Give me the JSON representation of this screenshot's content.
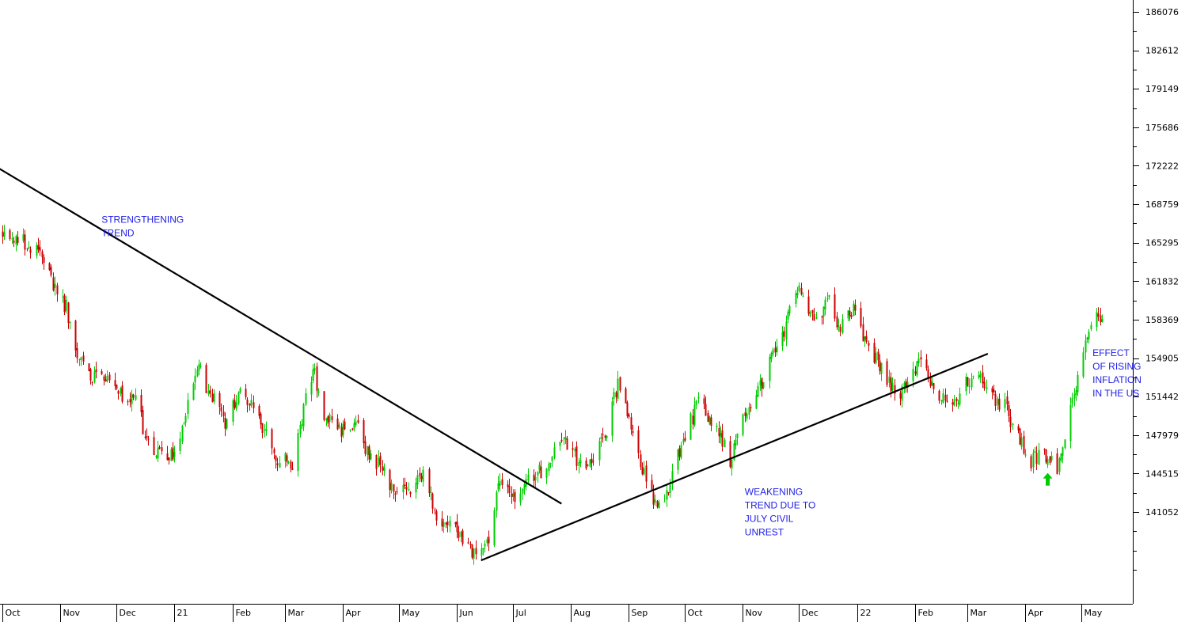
{
  "chart_data": {
    "type": "candlestick",
    "title": "",
    "xlabel": "",
    "ylabel": "",
    "y_axis_position": "right",
    "ylim": [
      136500,
      187300
    ],
    "grid": false,
    "y_ticks": [
      186076,
      182612,
      179149,
      175686,
      172222,
      168759,
      165295,
      161832,
      158369,
      154905,
      151442,
      147979,
      144515,
      141052
    ],
    "x_ticks": [
      {
        "label": "Oct",
        "date": "2020-10"
      },
      {
        "label": "Nov",
        "date": "2020-11"
      },
      {
        "label": "Dec",
        "date": "2020-12"
      },
      {
        "label": "21",
        "date": "2021-01"
      },
      {
        "label": "Feb",
        "date": "2021-02"
      },
      {
        "label": "Mar",
        "date": "2021-03"
      },
      {
        "label": "Apr",
        "date": "2021-04"
      },
      {
        "label": "May",
        "date": "2021-05"
      },
      {
        "label": "Jun",
        "date": "2021-06"
      },
      {
        "label": "Jul",
        "date": "2021-07"
      },
      {
        "label": "Aug",
        "date": "2021-08"
      },
      {
        "label": "Sep",
        "date": "2021-09"
      },
      {
        "label": "Oct",
        "date": "2021-10"
      },
      {
        "label": "Nov",
        "date": "2021-11"
      },
      {
        "label": "Dec",
        "date": "2021-12"
      },
      {
        "label": "22",
        "date": "2022-01"
      },
      {
        "label": "Feb",
        "date": "2022-02"
      },
      {
        "label": "Mar",
        "date": "2022-03"
      },
      {
        "label": "Apr",
        "date": "2022-04"
      },
      {
        "label": "May",
        "date": "2022-05"
      }
    ],
    "up_color": "#00cc00",
    "down_color": "#cc0000",
    "price_path": [
      [
        "2020-10-01",
        166200
      ],
      [
        "2020-10-10",
        165500
      ],
      [
        "2020-10-20",
        164800
      ],
      [
        "2020-10-28",
        161500
      ],
      [
        "2020-11-04",
        159500
      ],
      [
        "2020-11-09",
        155500
      ],
      [
        "2020-11-16",
        153300
      ],
      [
        "2020-11-25",
        152800
      ],
      [
        "2020-12-04",
        151400
      ],
      [
        "2020-12-11",
        151700
      ],
      [
        "2020-12-17",
        147200
      ],
      [
        "2020-12-23",
        146100
      ],
      [
        "2020-12-31",
        146000
      ],
      [
        "2021-01-08",
        150500
      ],
      [
        "2021-01-14",
        153800
      ],
      [
        "2021-01-21",
        151400
      ],
      [
        "2021-01-28",
        149200
      ],
      [
        "2021-02-04",
        151800
      ],
      [
        "2021-02-11",
        150900
      ],
      [
        "2021-02-18",
        148300
      ],
      [
        "2021-02-25",
        145200
      ],
      [
        "2021-03-01",
        146600
      ],
      [
        "2021-03-05",
        144800
      ],
      [
        "2021-03-11",
        150500
      ],
      [
        "2021-03-16",
        154100
      ],
      [
        "2021-03-22",
        149700
      ],
      [
        "2021-03-31",
        148300
      ],
      [
        "2021-04-08",
        149200
      ],
      [
        "2021-04-15",
        146000
      ],
      [
        "2021-04-22",
        145200
      ],
      [
        "2021-04-29",
        142700
      ],
      [
        "2021-05-06",
        143100
      ],
      [
        "2021-05-14",
        144600
      ],
      [
        "2021-05-21",
        140600
      ],
      [
        "2021-05-31",
        140000
      ],
      [
        "2021-06-07",
        137600
      ],
      [
        "2021-06-12",
        136800
      ],
      [
        "2021-06-18",
        138800
      ],
      [
        "2021-06-23",
        143500
      ],
      [
        "2021-06-30",
        142300
      ],
      [
        "2021-07-07",
        143600
      ],
      [
        "2021-07-14",
        144400
      ],
      [
        "2021-07-21",
        145700
      ],
      [
        "2021-07-29",
        147600
      ],
      [
        "2021-08-04",
        145700
      ],
      [
        "2021-08-10",
        144700
      ],
      [
        "2021-08-19",
        148000
      ],
      [
        "2021-08-26",
        152500
      ],
      [
        "2021-09-01",
        149900
      ],
      [
        "2021-09-06",
        145900
      ],
      [
        "2021-09-14",
        142300
      ],
      [
        "2021-09-20",
        141900
      ],
      [
        "2021-09-25",
        145400
      ],
      [
        "2021-10-01",
        147800
      ],
      [
        "2021-10-08",
        151100
      ],
      [
        "2021-10-15",
        149300
      ],
      [
        "2021-10-20",
        147800
      ],
      [
        "2021-10-25",
        145400
      ],
      [
        "2021-10-31",
        149700
      ],
      [
        "2021-11-05",
        150900
      ],
      [
        "2021-11-11",
        152700
      ],
      [
        "2021-11-17",
        155300
      ],
      [
        "2021-11-24",
        157800
      ],
      [
        "2021-11-30",
        161300
      ],
      [
        "2021-12-06",
        158300
      ],
      [
        "2021-12-13",
        159000
      ],
      [
        "2021-12-17",
        160100
      ],
      [
        "2021-12-22",
        157200
      ],
      [
        "2021-12-30",
        159400
      ],
      [
        "2022-01-06",
        156100
      ],
      [
        "2022-01-12",
        154500
      ],
      [
        "2022-01-19",
        152600
      ],
      [
        "2022-01-25",
        151700
      ],
      [
        "2022-02-02",
        154300
      ],
      [
        "2022-02-08",
        153500
      ],
      [
        "2022-02-14",
        151200
      ],
      [
        "2022-02-21",
        150500
      ],
      [
        "2022-03-01",
        152900
      ],
      [
        "2022-03-07",
        153500
      ],
      [
        "2022-03-14",
        151600
      ],
      [
        "2022-03-21",
        150500
      ],
      [
        "2022-03-28",
        147800
      ],
      [
        "2022-04-04",
        145600
      ],
      [
        "2022-04-11",
        146300
      ],
      [
        "2022-04-18",
        145100
      ],
      [
        "2022-04-25",
        150300
      ],
      [
        "2022-05-02",
        155700
      ],
      [
        "2022-05-08",
        159400
      ],
      [
        "2022-05-12",
        158000
      ]
    ],
    "trendlines": [
      {
        "from": [
          "2020-09-26",
          172300
        ],
        "to": [
          "2021-07-27",
          141800
        ]
      },
      {
        "from": [
          "2021-06-14",
          136700
        ],
        "to": [
          "2022-03-12",
          155300
        ]
      }
    ],
    "annotations": [
      {
        "lines": [
          "STRENGTHENING",
          "TREND"
        ],
        "at": [
          "2020-11-23",
          167100
        ]
      },
      {
        "lines": [
          "WEAKENING",
          "TREND DUE TO",
          "JULY CIVIL",
          "UNREST"
        ],
        "at": [
          "2021-11-02",
          142600
        ]
      },
      {
        "lines": [
          "EFFECT",
          "OF RISING",
          "INFLATION",
          "IN THE US"
        ],
        "at": [
          "2022-05-07",
          155100
        ]
      }
    ],
    "markers": [
      {
        "type": "up-arrow",
        "color": "#00cc00",
        "at": [
          "2022-04-13",
          144000
        ]
      }
    ]
  }
}
